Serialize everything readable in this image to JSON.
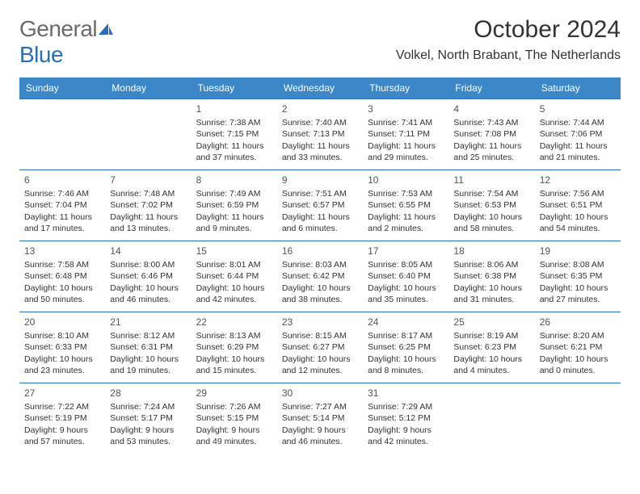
{
  "logo": {
    "text_general": "General",
    "text_blue": "Blue"
  },
  "title": "October 2024",
  "location": "Volkel, North Brabant, The Netherlands",
  "colors": {
    "header_bg": "#3b87c8",
    "header_text": "#ffffff",
    "border": "#2a6db8",
    "body_text": "#333333",
    "daynum": "#555555",
    "logo_gray": "#6b6b6b",
    "logo_blue": "#2a6db8",
    "background": "#ffffff"
  },
  "typography": {
    "title_size": 30,
    "location_size": 16,
    "day_header_size": 12,
    "cell_size": 10.5,
    "logo_size": 28
  },
  "day_headers": [
    "Sunday",
    "Monday",
    "Tuesday",
    "Wednesday",
    "Thursday",
    "Friday",
    "Saturday"
  ],
  "weeks": [
    [
      {
        "num": "",
        "lines": []
      },
      {
        "num": "",
        "lines": []
      },
      {
        "num": "1",
        "lines": [
          "Sunrise: 7:38 AM",
          "Sunset: 7:15 PM",
          "Daylight: 11 hours and 37 minutes."
        ]
      },
      {
        "num": "2",
        "lines": [
          "Sunrise: 7:40 AM",
          "Sunset: 7:13 PM",
          "Daylight: 11 hours and 33 minutes."
        ]
      },
      {
        "num": "3",
        "lines": [
          "Sunrise: 7:41 AM",
          "Sunset: 7:11 PM",
          "Daylight: 11 hours and 29 minutes."
        ]
      },
      {
        "num": "4",
        "lines": [
          "Sunrise: 7:43 AM",
          "Sunset: 7:08 PM",
          "Daylight: 11 hours and 25 minutes."
        ]
      },
      {
        "num": "5",
        "lines": [
          "Sunrise: 7:44 AM",
          "Sunset: 7:06 PM",
          "Daylight: 11 hours and 21 minutes."
        ]
      }
    ],
    [
      {
        "num": "6",
        "lines": [
          "Sunrise: 7:46 AM",
          "Sunset: 7:04 PM",
          "Daylight: 11 hours and 17 minutes."
        ]
      },
      {
        "num": "7",
        "lines": [
          "Sunrise: 7:48 AM",
          "Sunset: 7:02 PM",
          "Daylight: 11 hours and 13 minutes."
        ]
      },
      {
        "num": "8",
        "lines": [
          "Sunrise: 7:49 AM",
          "Sunset: 6:59 PM",
          "Daylight: 11 hours and 9 minutes."
        ]
      },
      {
        "num": "9",
        "lines": [
          "Sunrise: 7:51 AM",
          "Sunset: 6:57 PM",
          "Daylight: 11 hours and 6 minutes."
        ]
      },
      {
        "num": "10",
        "lines": [
          "Sunrise: 7:53 AM",
          "Sunset: 6:55 PM",
          "Daylight: 11 hours and 2 minutes."
        ]
      },
      {
        "num": "11",
        "lines": [
          "Sunrise: 7:54 AM",
          "Sunset: 6:53 PM",
          "Daylight: 10 hours and 58 minutes."
        ]
      },
      {
        "num": "12",
        "lines": [
          "Sunrise: 7:56 AM",
          "Sunset: 6:51 PM",
          "Daylight: 10 hours and 54 minutes."
        ]
      }
    ],
    [
      {
        "num": "13",
        "lines": [
          "Sunrise: 7:58 AM",
          "Sunset: 6:48 PM",
          "Daylight: 10 hours and 50 minutes."
        ]
      },
      {
        "num": "14",
        "lines": [
          "Sunrise: 8:00 AM",
          "Sunset: 6:46 PM",
          "Daylight: 10 hours and 46 minutes."
        ]
      },
      {
        "num": "15",
        "lines": [
          "Sunrise: 8:01 AM",
          "Sunset: 6:44 PM",
          "Daylight: 10 hours and 42 minutes."
        ]
      },
      {
        "num": "16",
        "lines": [
          "Sunrise: 8:03 AM",
          "Sunset: 6:42 PM",
          "Daylight: 10 hours and 38 minutes."
        ]
      },
      {
        "num": "17",
        "lines": [
          "Sunrise: 8:05 AM",
          "Sunset: 6:40 PM",
          "Daylight: 10 hours and 35 minutes."
        ]
      },
      {
        "num": "18",
        "lines": [
          "Sunrise: 8:06 AM",
          "Sunset: 6:38 PM",
          "Daylight: 10 hours and 31 minutes."
        ]
      },
      {
        "num": "19",
        "lines": [
          "Sunrise: 8:08 AM",
          "Sunset: 6:35 PM",
          "Daylight: 10 hours and 27 minutes."
        ]
      }
    ],
    [
      {
        "num": "20",
        "lines": [
          "Sunrise: 8:10 AM",
          "Sunset: 6:33 PM",
          "Daylight: 10 hours and 23 minutes."
        ]
      },
      {
        "num": "21",
        "lines": [
          "Sunrise: 8:12 AM",
          "Sunset: 6:31 PM",
          "Daylight: 10 hours and 19 minutes."
        ]
      },
      {
        "num": "22",
        "lines": [
          "Sunrise: 8:13 AM",
          "Sunset: 6:29 PM",
          "Daylight: 10 hours and 15 minutes."
        ]
      },
      {
        "num": "23",
        "lines": [
          "Sunrise: 8:15 AM",
          "Sunset: 6:27 PM",
          "Daylight: 10 hours and 12 minutes."
        ]
      },
      {
        "num": "24",
        "lines": [
          "Sunrise: 8:17 AM",
          "Sunset: 6:25 PM",
          "Daylight: 10 hours and 8 minutes."
        ]
      },
      {
        "num": "25",
        "lines": [
          "Sunrise: 8:19 AM",
          "Sunset: 6:23 PM",
          "Daylight: 10 hours and 4 minutes."
        ]
      },
      {
        "num": "26",
        "lines": [
          "Sunrise: 8:20 AM",
          "Sunset: 6:21 PM",
          "Daylight: 10 hours and 0 minutes."
        ]
      }
    ],
    [
      {
        "num": "27",
        "lines": [
          "Sunrise: 7:22 AM",
          "Sunset: 5:19 PM",
          "Daylight: 9 hours and 57 minutes."
        ]
      },
      {
        "num": "28",
        "lines": [
          "Sunrise: 7:24 AM",
          "Sunset: 5:17 PM",
          "Daylight: 9 hours and 53 minutes."
        ]
      },
      {
        "num": "29",
        "lines": [
          "Sunrise: 7:26 AM",
          "Sunset: 5:15 PM",
          "Daylight: 9 hours and 49 minutes."
        ]
      },
      {
        "num": "30",
        "lines": [
          "Sunrise: 7:27 AM",
          "Sunset: 5:14 PM",
          "Daylight: 9 hours and 46 minutes."
        ]
      },
      {
        "num": "31",
        "lines": [
          "Sunrise: 7:29 AM",
          "Sunset: 5:12 PM",
          "Daylight: 9 hours and 42 minutes."
        ]
      },
      {
        "num": "",
        "lines": []
      },
      {
        "num": "",
        "lines": []
      }
    ]
  ]
}
